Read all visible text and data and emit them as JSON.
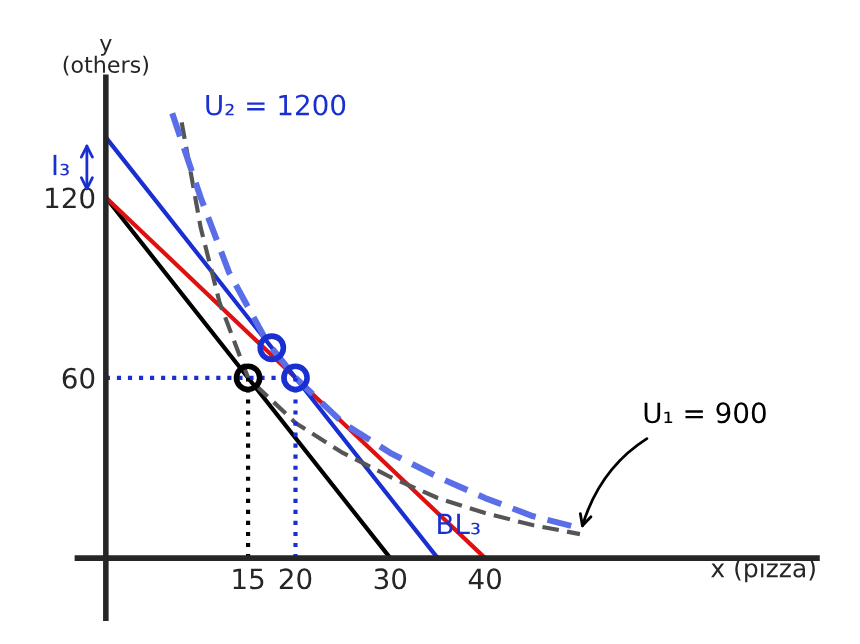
{
  "chart_data": {
    "type": "line",
    "xlabel": "x (pizza)",
    "ylabel": "y\n(others)",
    "xlim": [
      -3,
      75
    ],
    "ylim": [
      -20,
      160
    ],
    "xticks": [
      15,
      20,
      30,
      40
    ],
    "yticks": [
      60,
      120
    ],
    "series": [
      {
        "color": "#000000",
        "x": [
          0,
          30
        ],
        "values": [
          120,
          0
        ],
        "line_style": "solid"
      },
      {
        "color": "#e01010",
        "x": [
          0,
          40
        ],
        "values": [
          120,
          0
        ],
        "line_style": "solid"
      },
      {
        "color": "#1a2fd0",
        "x": [
          0,
          35
        ],
        "values": [
          140,
          0
        ],
        "line_style": "solid"
      },
      {
        "color": "#555555",
        "x": [
          8,
          10,
          12,
          15,
          20,
          25,
          30,
          35,
          40,
          45,
          50
        ],
        "values": [
          145,
          110,
          85,
          60,
          45,
          35,
          27,
          20,
          15,
          11,
          8
        ],
        "line_style": "dashed"
      },
      {
        "color": "#5a6ee8",
        "x": [
          7,
          10,
          13,
          17,
          20,
          25,
          30,
          35,
          40,
          45,
          50
        ],
        "values": [
          148,
          120,
          95,
          72,
          60,
          45,
          35,
          27,
          20,
          14,
          10
        ],
        "line_style": "dashed"
      },
      {
        "color": "#1a2fd0",
        "x": [
          0,
          20
        ],
        "values": [
          60,
          60
        ],
        "line_style": "dotted"
      },
      {
        "color": "#000000",
        "x": [
          15,
          15
        ],
        "values": [
          0,
          60
        ],
        "line_style": "dotted"
      },
      {
        "color": "#1a2fd0",
        "x": [
          20,
          20
        ],
        "values": [
          0,
          60
        ],
        "line_style": "dotted"
      },
      {
        "type": "scatter",
        "color": "#000000",
        "x": [
          15
        ],
        "values": [
          60
        ],
        "marker": "circle"
      },
      {
        "type": "scatter",
        "color": "#1a2fd0",
        "x": [
          17.5,
          20
        ],
        "values": [
          70,
          60
        ],
        "marker": "circle"
      }
    ],
    "annotations": [
      {
        "text": "U₂ = 1200",
        "x": 8,
        "y": 140
      },
      {
        "text": "U₁ = 900",
        "x": 50,
        "y": 8
      },
      {
        "text": "BL₃",
        "x": 33,
        "y": 8
      },
      "I₃"
    ]
  }
}
